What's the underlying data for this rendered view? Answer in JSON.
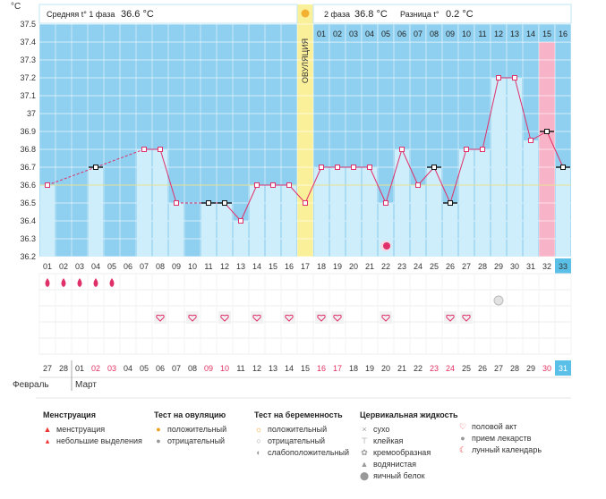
{
  "header": {
    "unit": "°C",
    "phase1_label": "Средняя t° 1 фаза",
    "phase1_value": "36.6 °C",
    "phase2_label": "2 фаза",
    "phase2_value": "36.8 °C",
    "diff_label": "Разница t°",
    "diff_value": "0.2 °C",
    "ovulation_label": "ОВУЛЯЦИЯ"
  },
  "chart_data": {
    "type": "line",
    "ylim": [
      36.2,
      37.5
    ],
    "ylabel": "°C",
    "y_ticks": [
      "37.5",
      "37.4",
      "37.3",
      "37.2",
      "37.1",
      "37",
      "36.9",
      "36.8",
      "36.7",
      "36.6",
      "36.5",
      "36.4",
      "36.3",
      "36.2"
    ],
    "cycle_days": [
      "01",
      "02",
      "03",
      "04",
      "05",
      "06",
      "07",
      "08",
      "09",
      "10",
      "11",
      "12",
      "13",
      "14",
      "15",
      "16",
      "17",
      "18",
      "19",
      "20",
      "21",
      "22",
      "23",
      "24",
      "25",
      "26",
      "27",
      "28",
      "29",
      "30",
      "31",
      "32",
      "33"
    ],
    "phase2_days": [
      "01",
      "02",
      "03",
      "04",
      "05",
      "06",
      "07",
      "08",
      "09",
      "10",
      "11",
      "12",
      "13",
      "14",
      "15",
      "16"
    ],
    "calendar_days": [
      "27",
      "28",
      "01",
      "02",
      "03",
      "04",
      "05",
      "06",
      "07",
      "08",
      "09",
      "10",
      "11",
      "12",
      "13",
      "14",
      "15",
      "16",
      "17",
      "18",
      "19",
      "20",
      "21",
      "22",
      "23",
      "24",
      "25",
      "26",
      "27",
      "28",
      "29",
      "30",
      "31"
    ],
    "weekend_calendar_indices": [
      3,
      4,
      10,
      11,
      17,
      18,
      24,
      25,
      31
    ],
    "month_labels": [
      "Февраль",
      "Март"
    ],
    "temperatures": [
      36.6,
      null,
      null,
      36.7,
      null,
      null,
      36.8,
      36.8,
      36.5,
      null,
      36.5,
      36.5,
      36.4,
      36.6,
      36.6,
      36.6,
      36.5,
      36.7,
      36.7,
      36.7,
      36.7,
      36.5,
      36.8,
      36.6,
      36.7,
      36.5,
      36.8,
      36.8,
      37.2,
      37.2,
      36.85,
      36.9,
      36.7
    ],
    "marker_days": [
      4,
      11,
      12,
      25,
      26,
      32,
      33
    ],
    "ovulation_day": 17,
    "phase1_avg": 36.6,
    "phase2_avg": 36.8,
    "menstruation_days": [
      1,
      2,
      3,
      4,
      5
    ],
    "sex_days": [
      8,
      10,
      12,
      14,
      16,
      18,
      19,
      22,
      26,
      27
    ],
    "medication_days": [
      29
    ],
    "lunar_days": [
      22
    ],
    "highlight_day": 32,
    "colors": {
      "sky": "#8fd0f0",
      "bar": "#cfeefc",
      "line": "#e0306a",
      "ovulation": "#fbf09a",
      "highlight": "#f7b3c8",
      "day_bg": "#2a9fd8",
      "accent_cell": "#5bc0e8",
      "weekend": "#e03060",
      "avg_line": "#e8e090"
    }
  },
  "legend": {
    "menstruation": {
      "title": "Менструация",
      "items": [
        "менструация",
        "небольшие выделения"
      ]
    },
    "ovulation_test": {
      "title": "Тест на овуляцию",
      "items": [
        "положительный",
        "отрицательный"
      ]
    },
    "pregnancy_test": {
      "title": "Тест на беременность",
      "items": [
        "положительный",
        "отрицательный",
        "слабоположительный"
      ]
    },
    "cervical": {
      "title": "Цервикальная жидкость",
      "items": [
        "сухо",
        "клейкая",
        "кремообразная",
        "водянистая",
        "яичный белок"
      ]
    },
    "other": {
      "items": [
        "половой акт",
        "прием лекарств",
        "лунный календарь"
      ]
    },
    "icons": {
      "menstruation": "drop-icon",
      "spotting": "small-drop-icon",
      "ov_positive": "sun-icon",
      "ov_negative": "grey-circle-icon",
      "preg_positive": "sun-icon",
      "preg_negative": "circle-icon",
      "preg_weak": "half-circle-icon",
      "dry": "x-icon",
      "sticky": "t-icon",
      "creamy": "swirl-icon",
      "watery": "drop-icon",
      "eggwhite": "egg-icon",
      "sex": "heart-icon",
      "meds": "pill-icon",
      "lunar": "moon-icon"
    }
  }
}
